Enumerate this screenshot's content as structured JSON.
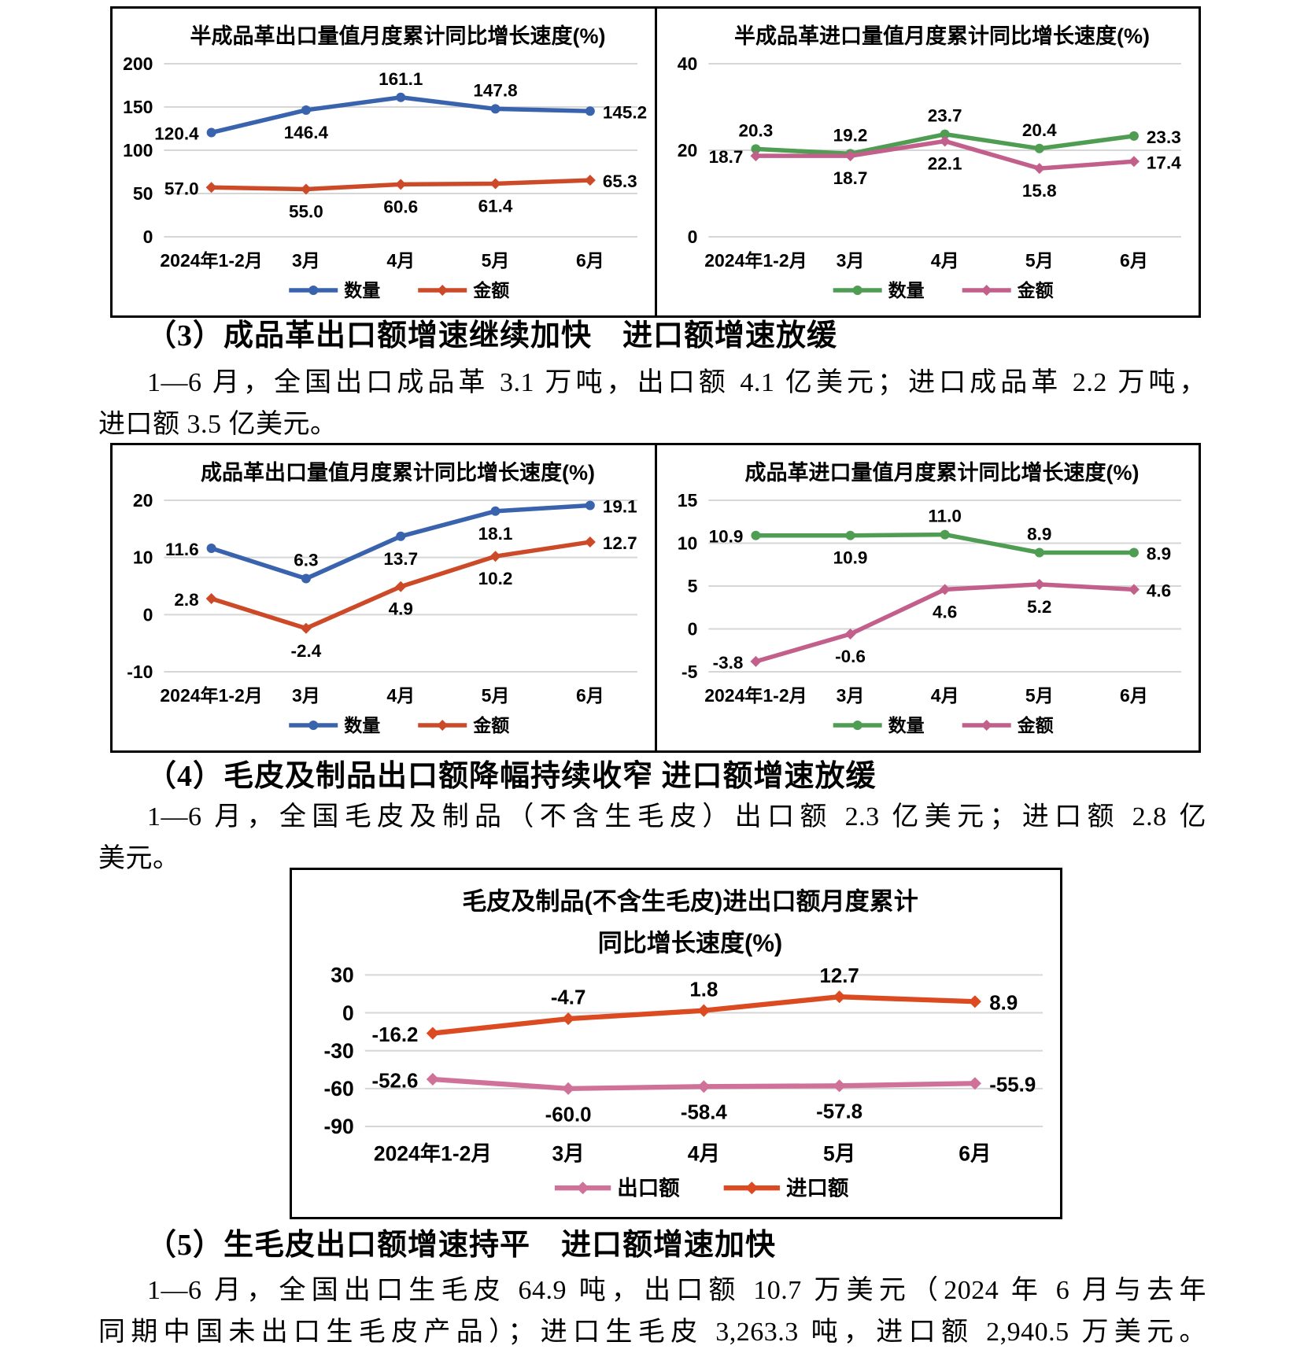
{
  "document": {
    "sections": [
      {
        "heading": "（3）成品革出口额增速继续加快　进口额增速放缓",
        "lines": [
          "1—6 月，全国出口成品革 3.1 万吨，出口额 4.1 亿美元；进口成品革 2.2 万吨，",
          "进口额 3.5 亿美元。"
        ]
      },
      {
        "heading": "（4）毛皮及制品出口额降幅持续收窄 进口额增速放缓",
        "lines": [
          "1—6 月，全国毛皮及制品（不含生毛皮）出口额 2.3 亿美元；进口额 2.8 亿",
          "美元。"
        ]
      },
      {
        "heading": "（5）生毛皮出口额增速持平　进口额增速加快",
        "lines": [
          "1—6 月，全国出口生毛皮 64.9 吨，出口额 10.7 万美元（2024 年 6 月与去年",
          "同期中国未出口生毛皮产品）；进口生毛皮 3,263.3 吨，进口额 2,940.5 万美元。"
        ]
      }
    ]
  },
  "colors": {
    "export_quantity_blue": "#3A63AE",
    "export_amount_red": "#CC4A28",
    "import_quantity_green": "#4F9C53",
    "import_amount_rose": "#C2608B",
    "fur_export_pink": "#D0719A",
    "fur_import_red": "#DB4A20",
    "gridline_gray": "#D6D6D6"
  },
  "chart_data": [
    {
      "type": "line",
      "title": [
        "半成品革出口量值月度累计同比增长速度(%)"
      ],
      "categories": [
        "2024年1-2月",
        "3月",
        "4月",
        "5月",
        "6月"
      ],
      "yticks": [
        0,
        50,
        100,
        150,
        200
      ],
      "ylim": [
        0,
        200
      ],
      "grid": true,
      "legend_position": "bottom",
      "series": [
        {
          "name": "数量",
          "color": "#3A63AE",
          "marker": "circle",
          "values": [
            120.4,
            146.4,
            161.1,
            147.8,
            145.2
          ],
          "labels": [
            "120.4",
            "146.4",
            "161.1",
            "147.8",
            "145.2"
          ],
          "label_pos": [
            "left",
            "below",
            "above",
            "above",
            "right"
          ]
        },
        {
          "name": "金额",
          "color": "#CC4A28",
          "marker": "diamond",
          "values": [
            57.0,
            55.0,
            60.6,
            61.4,
            65.3
          ],
          "labels": [
            "57.0",
            "55.0",
            "60.6",
            "61.4",
            "65.3"
          ],
          "label_pos": [
            "left",
            "below",
            "below",
            "below",
            "right"
          ]
        }
      ]
    },
    {
      "type": "line",
      "title": [
        "半成品革进口量值月度累计同比增长速度(%)"
      ],
      "categories": [
        "2024年1-2月",
        "3月",
        "4月",
        "5月",
        "6月"
      ],
      "yticks": [
        0,
        20,
        40
      ],
      "ylim": [
        0,
        40
      ],
      "grid": true,
      "legend_position": "bottom",
      "series": [
        {
          "name": "数量",
          "color": "#4F9C53",
          "marker": "circle",
          "values": [
            20.3,
            19.2,
            23.7,
            20.4,
            23.3
          ],
          "labels": [
            "20.3",
            "19.2",
            "23.7",
            "20.4",
            "23.3"
          ],
          "label_pos": [
            "above",
            "above",
            "above",
            "above",
            "right"
          ]
        },
        {
          "name": "金额",
          "color": "#C2608B",
          "marker": "diamond",
          "values": [
            18.7,
            18.7,
            22.1,
            15.8,
            17.4
          ],
          "labels": [
            "18.7",
            "18.7",
            "22.1",
            "15.8",
            "17.4"
          ],
          "label_pos": [
            "left",
            "below",
            "below",
            "below",
            "right"
          ]
        }
      ]
    },
    {
      "type": "line",
      "title": [
        "成品革出口量值月度累计同比增长速度(%)"
      ],
      "categories": [
        "2024年1-2月",
        "3月",
        "4月",
        "5月",
        "6月"
      ],
      "yticks": [
        -10,
        0,
        10,
        20
      ],
      "ylim": [
        -10,
        20
      ],
      "grid": true,
      "legend_position": "bottom",
      "series": [
        {
          "name": "数量",
          "color": "#3A63AE",
          "marker": "circle",
          "values": [
            11.6,
            6.3,
            13.7,
            18.1,
            19.1
          ],
          "labels": [
            "11.6",
            "6.3",
            "13.7",
            "18.1",
            "19.1"
          ],
          "label_pos": [
            "left",
            "above",
            "below",
            "below",
            "right"
          ]
        },
        {
          "name": "金额",
          "color": "#CC4A28",
          "marker": "diamond",
          "values": [
            2.8,
            -2.4,
            4.9,
            10.2,
            12.7
          ],
          "labels": [
            "2.8",
            "-2.4",
            "4.9",
            "10.2",
            "12.7"
          ],
          "label_pos": [
            "left",
            "below",
            "below",
            "below",
            "right"
          ]
        }
      ]
    },
    {
      "type": "line",
      "title": [
        "成品革进口量值月度累计同比增长速度(%)"
      ],
      "categories": [
        "2024年1-2月",
        "3月",
        "4月",
        "5月",
        "6月"
      ],
      "yticks": [
        -5,
        0,
        5,
        10,
        15
      ],
      "ylim": [
        -5,
        15
      ],
      "grid": true,
      "legend_position": "bottom",
      "series": [
        {
          "name": "数量",
          "color": "#4F9C53",
          "marker": "circle",
          "values": [
            10.9,
            10.9,
            11.0,
            8.9,
            8.9
          ],
          "labels": [
            "10.9",
            "10.9",
            "11.0",
            "8.9",
            "8.9"
          ],
          "label_pos": [
            "left",
            "below",
            "above",
            "above",
            "right"
          ]
        },
        {
          "name": "金额",
          "color": "#C2608B",
          "marker": "diamond",
          "values": [
            -3.8,
            -0.6,
            4.6,
            5.2,
            4.6
          ],
          "labels": [
            "-3.8",
            "-0.6",
            "4.6",
            "5.2",
            "4.6"
          ],
          "label_pos": [
            "left",
            "below",
            "below",
            "below",
            "right"
          ]
        }
      ]
    },
    {
      "type": "line",
      "title": [
        "毛皮及制品(不含生毛皮)进出口额月度累计",
        "同比增长速度(%)"
      ],
      "categories": [
        "2024年1-2月",
        "3月",
        "4月",
        "5月",
        "6月"
      ],
      "yticks": [
        -90,
        -60,
        -30,
        0,
        30
      ],
      "ylim": [
        -90,
        30
      ],
      "grid": true,
      "legend_position": "bottom",
      "font_scale": 1.15,
      "series": [
        {
          "name": "出口额",
          "color": "#D0719A",
          "marker": "diamond",
          "values": [
            -52.6,
            -60.0,
            -58.4,
            -57.8,
            -55.9
          ],
          "labels": [
            "-52.6",
            "-60.0",
            "-58.4",
            "-57.8",
            "-55.9"
          ],
          "label_pos": [
            "left",
            "below",
            "below",
            "below",
            "right"
          ]
        },
        {
          "name": "进口额",
          "color": "#DB4A20",
          "marker": "diamond",
          "values": [
            -16.2,
            -4.7,
            1.8,
            12.7,
            8.9
          ],
          "labels": [
            "-16.2",
            "-4.7",
            "1.8",
            "12.7",
            "8.9"
          ],
          "label_pos": [
            "left",
            "above",
            "above",
            "above",
            "right"
          ]
        }
      ]
    }
  ]
}
